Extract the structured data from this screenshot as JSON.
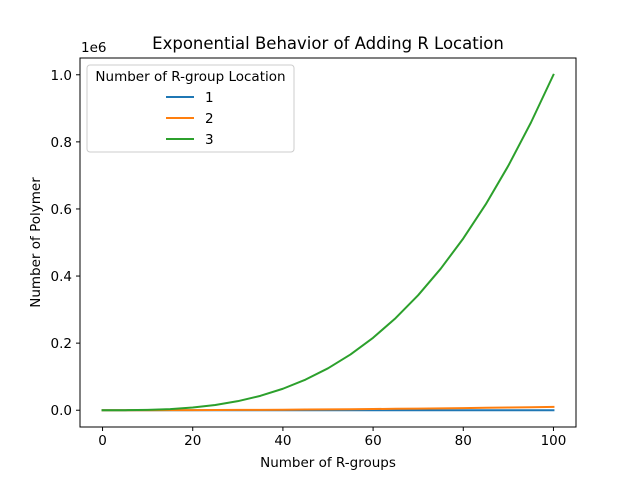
{
  "chart_data": {
    "type": "line",
    "title": "Exponential Behavior of Adding R Location",
    "xlabel": "Number of R-groups",
    "ylabel": "Number of Polymer",
    "offset_text": "1e6",
    "xlim": [
      -5,
      105
    ],
    "ylim": [
      -50000,
      1050000
    ],
    "x_ticks": [
      0,
      20,
      40,
      60,
      80,
      100
    ],
    "x_tick_labels": [
      "0",
      "20",
      "40",
      "60",
      "80",
      "100"
    ],
    "y_ticks": [
      0,
      200000,
      400000,
      600000,
      800000,
      1000000
    ],
    "y_tick_labels": [
      "0.0",
      "0.2",
      "0.4",
      "0.6",
      "0.8",
      "1.0"
    ],
    "grid": false,
    "legend": {
      "title": "Number of R-group Location",
      "placement": "upper-left"
    },
    "x": [
      0,
      5,
      10,
      15,
      20,
      25,
      30,
      35,
      40,
      45,
      50,
      55,
      60,
      65,
      70,
      75,
      80,
      85,
      90,
      95,
      100
    ],
    "series": [
      {
        "name": "1",
        "color": "#1f77b4",
        "values": [
          0,
          5,
          10,
          15,
          20,
          25,
          30,
          35,
          40,
          45,
          50,
          55,
          60,
          65,
          70,
          75,
          80,
          85,
          90,
          95,
          100
        ]
      },
      {
        "name": "2",
        "color": "#ff7f0e",
        "values": [
          0,
          25,
          100,
          225,
          400,
          625,
          900,
          1225,
          1600,
          2025,
          2500,
          3025,
          3600,
          4225,
          4900,
          5625,
          6400,
          7225,
          8100,
          9025,
          10000
        ]
      },
      {
        "name": "3",
        "color": "#2ca02c",
        "values": [
          0,
          125,
          1000,
          3375,
          8000,
          15625,
          27000,
          42875,
          64000,
          91125,
          125000,
          166375,
          216000,
          274625,
          343000,
          421875,
          512000,
          614125,
          729000,
          857375,
          1000000
        ]
      }
    ]
  }
}
